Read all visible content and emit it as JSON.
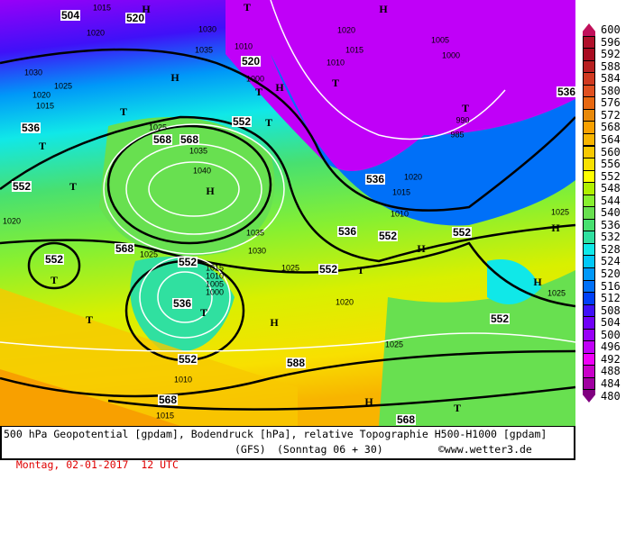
{
  "footer": {
    "line1": "500 hPa Geopotential [gpdam], Bodendruck [hPa], relative Topographie H500-H1000 [gpdam]",
    "date": "Montag, 02-01-2017  12 UTC",
    "model": "(GFS)",
    "run": "(Sonntag 06 + 30)",
    "copyright": "©www.wetter3.de"
  },
  "legend": {
    "labels": [
      "600",
      "596",
      "592",
      "588",
      "584",
      "580",
      "576",
      "572",
      "568",
      "564",
      "560",
      "556",
      "552",
      "548",
      "544",
      "540",
      "536",
      "532",
      "528",
      "524",
      "520",
      "516",
      "512",
      "508",
      "504",
      "500",
      "496",
      "492",
      "488",
      "484",
      "480"
    ],
    "colors": [
      "#c0105a",
      "#b0102a",
      "#a80c20",
      "#b82020",
      "#d03a20",
      "#e05020",
      "#e86810",
      "#e88808",
      "#f8a000",
      "#f8b400",
      "#f8c800",
      "#f8e000",
      "#ffff00",
      "#b0f000",
      "#88f030",
      "#68e050",
      "#48e070",
      "#30e0a0",
      "#10e8e8",
      "#00c8f8",
      "#0098f8",
      "#0070f8",
      "#0040f8",
      "#4010f8",
      "#7000f8",
      "#9800f8",
      "#c000f8",
      "#f000f8",
      "#c800c8",
      "#a000a0",
      "#800080"
    ]
  },
  "map": {
    "geopotential_labels": [
      "504",
      "520",
      "520",
      "536",
      "552",
      "536",
      "568",
      "552",
      "552",
      "552",
      "568",
      "552",
      "536",
      "552",
      "536",
      "552",
      "552",
      "568",
      "568",
      "588",
      "568",
      "552",
      "536"
    ],
    "pressure_labels": [
      "1015",
      "1020",
      "1030",
      "1035",
      "1030",
      "1025",
      "1020",
      "1015",
      "1010",
      "1000",
      "1010",
      "1015",
      "1020",
      "1005",
      "1000",
      "990",
      "985",
      "1025",
      "1035",
      "1040",
      "1035",
      "1030",
      "1025",
      "1015",
      "1010",
      "1005",
      "1000",
      "1010",
      "1015",
      "1020",
      "1025",
      "1025",
      "1020",
      "1015",
      "1010",
      "1025",
      "1020",
      "1025"
    ],
    "symbols": [
      "H",
      "H",
      "T",
      "H",
      "T",
      "T",
      "T",
      "T",
      "T",
      "T",
      "H",
      "T",
      "H",
      "T",
      "T",
      "H",
      "T",
      "H",
      "H",
      "T",
      "H",
      "H",
      "T"
    ]
  }
}
